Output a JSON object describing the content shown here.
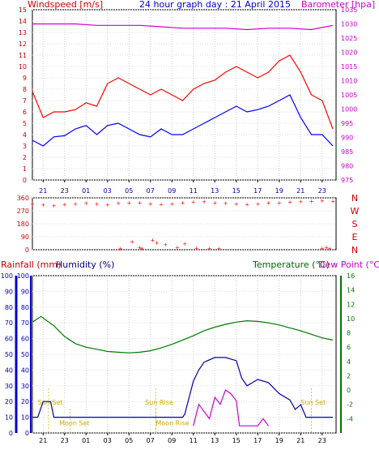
{
  "chart_data": [
    {
      "type": "line",
      "title": "24 hour graph day : 21 April 2015",
      "ylabel_left": "Windspeed [m/s]",
      "ylabel_right": "Barometer [hpa]",
      "x_ticks": [
        "21",
        "23",
        "01",
        "03",
        "05",
        "07",
        "09",
        "11",
        "13",
        "15",
        "17",
        "19",
        "21",
        "23"
      ],
      "y_left_ticks": [
        "0",
        "1",
        "2",
        "3",
        "4",
        "5",
        "6",
        "7",
        "8",
        "9",
        "10",
        "11",
        "12",
        "13",
        "14",
        "15"
      ],
      "y_right_ticks": [
        "975",
        "980",
        "985",
        "990",
        "995",
        "1000",
        "1005",
        "1010",
        "1015",
        "1020",
        "1025",
        "1030",
        "1035"
      ],
      "ylim_left": [
        0,
        15
      ],
      "ylim_right": [
        975,
        1035
      ],
      "grid": true,
      "series": [
        {
          "role": "gust",
          "color": "#ff0000",
          "x": [
            0,
            1,
            2,
            3,
            4,
            5,
            6,
            7,
            8,
            9,
            10,
            11,
            12,
            13,
            14,
            15,
            16,
            17,
            18,
            19,
            20,
            21,
            22,
            23,
            24,
            25,
            26,
            27,
            28
          ],
          "values": [
            7.8,
            5.5,
            6.0,
            6.0,
            6.2,
            6.8,
            6.5,
            8.5,
            9.0,
            8.5,
            8.0,
            7.5,
            8.0,
            7.5,
            7.0,
            8.0,
            8.5,
            8.8,
            9.5,
            10.0,
            9.5,
            9.0,
            9.5,
            10.5,
            11.0,
            9.5,
            7.5,
            7.0,
            4.5
          ]
        },
        {
          "role": "speed",
          "color": "#0000ff",
          "x": [
            0,
            1,
            2,
            3,
            4,
            5,
            6,
            7,
            8,
            9,
            10,
            11,
            12,
            13,
            14,
            15,
            16,
            17,
            18,
            19,
            20,
            21,
            22,
            23,
            24,
            25,
            26,
            27,
            28
          ],
          "values": [
            3.5,
            3.0,
            3.8,
            3.9,
            4.5,
            4.8,
            4.0,
            4.8,
            5.0,
            4.5,
            4.0,
            3.8,
            4.5,
            4.0,
            4.0,
            4.5,
            5.0,
            5.5,
            6.0,
            6.5,
            6.0,
            6.2,
            6.5,
            7.0,
            7.5,
            5.5,
            4.0,
            4.0,
            3.0
          ]
        },
        {
          "role": "barometer",
          "color": "#cc00cc",
          "axis": "right",
          "x": [
            0,
            2,
            4,
            6,
            8,
            10,
            12,
            14,
            16,
            18,
            20,
            22,
            24,
            26,
            28
          ],
          "values": [
            1030,
            1030,
            1030,
            1029.5,
            1029.5,
            1029.5,
            1029,
            1028.5,
            1028.5,
            1028.5,
            1028,
            1028.5,
            1028.5,
            1028,
            1029.5
          ]
        }
      ]
    },
    {
      "type": "scatter",
      "ylabel_right": [
        "N",
        "W",
        "S",
        "E",
        "N"
      ],
      "y_left_ticks": [
        "0",
        "90",
        "180",
        "270",
        "360"
      ],
      "ylim": [
        0,
        360
      ],
      "x_ticks": [
        "21",
        "23",
        "01",
        "03",
        "05",
        "07",
        "09",
        "11",
        "13",
        "15",
        "17",
        "19",
        "21",
        "23"
      ],
      "series": [
        {
          "role": "wind_direction",
          "color": "#ff0000",
          "x": [
            0,
            1,
            2,
            3,
            4,
            5,
            6,
            7,
            8,
            9,
            10,
            11,
            12,
            13,
            14,
            15,
            16,
            17,
            18,
            19,
            20,
            21,
            22,
            23,
            24,
            25,
            26,
            27,
            28
          ],
          "values": [
            320,
            315,
            310,
            318,
            322,
            325,
            320,
            315,
            325,
            330,
            328,
            320,
            318,
            322,
            330,
            335,
            338,
            330,
            325,
            320,
            318,
            322,
            328,
            330,
            335,
            338,
            340,
            342,
            340
          ]
        },
        {
          "role": "wind_direction_low",
          "color": "#ff0000",
          "x": [
            8.2,
            9.3,
            10.0,
            10.2,
            11.2,
            11.6,
            12.4,
            13.5,
            14.2,
            15.3,
            16.5,
            17.4,
            27.0,
            27.4,
            27.7
          ],
          "values": [
            10,
            60,
            20,
            10,
            70,
            50,
            40,
            20,
            45,
            15,
            10,
            10,
            15,
            20,
            10
          ]
        }
      ]
    },
    {
      "type": "line",
      "ylabel_left": "Rainfall (mm)",
      "ylabel_left2": "Humidity (%)",
      "ylabel_right": "Temperature (°C)",
      "ylabel_right2": "Dew Point (°C)",
      "x_ticks": [
        "21",
        "23",
        "01",
        "03",
        "05",
        "07",
        "09",
        "11",
        "13",
        "15",
        "17",
        "19",
        "21",
        "23"
      ],
      "y_left_ticks": [
        "0",
        "10",
        "20",
        "30",
        "40",
        "50",
        "60",
        "70",
        "80",
        "90",
        "100"
      ],
      "y_right_ticks": [
        "-4",
        "-2",
        "0",
        "2",
        "4",
        "6",
        "8",
        "10",
        "12",
        "14",
        "16"
      ],
      "ylim_left": [
        0,
        100
      ],
      "ylim_right": [
        -6,
        16
      ],
      "annotations": [
        {
          "text": "Sun Set",
          "x": 0.5,
          "y": 18
        },
        {
          "text": "Moon Set",
          "x": 2.5,
          "y": 5
        },
        {
          "text": "Sun Rise",
          "x": 10.5,
          "y": 18
        },
        {
          "text": "Moon Rise",
          "x": 11.5,
          "y": 5
        },
        {
          "text": "Sun Set",
          "x": 25.0,
          "y": 18
        }
      ],
      "series": [
        {
          "role": "temperature",
          "color": "#007700",
          "axis": "right",
          "x": [
            0,
            0.8,
            2,
            3,
            4,
            5,
            6,
            7,
            8,
            9,
            10,
            11,
            12,
            13,
            14,
            15,
            16,
            17,
            18,
            19,
            20,
            21,
            22,
            23,
            24,
            25,
            26,
            27,
            28
          ],
          "values": [
            9.5,
            10.3,
            9.0,
            7.5,
            6.5,
            6.0,
            5.7,
            5.4,
            5.3,
            5.2,
            5.3,
            5.5,
            5.9,
            6.4,
            7.0,
            7.6,
            8.3,
            8.8,
            9.2,
            9.5,
            9.7,
            9.6,
            9.4,
            9.1,
            8.7,
            8.3,
            7.8,
            7.3,
            7.0
          ]
        },
        {
          "role": "humidity",
          "color": "#0000aa",
          "axis": "left",
          "x": [
            0,
            0.5,
            1,
            1.7,
            2,
            14,
            14.2,
            15,
            15.5,
            16,
            17,
            18,
            19,
            19.5,
            20,
            21,
            22,
            23,
            24,
            24.5,
            25,
            25.5,
            26,
            28
          ],
          "values": [
            10,
            10,
            20,
            20,
            10,
            10,
            12,
            33,
            40,
            45,
            48,
            48,
            46,
            35,
            30,
            34,
            32,
            25,
            21,
            15,
            18,
            10,
            10,
            10
          ]
        },
        {
          "role": "dew_point",
          "color": "#cc00cc",
          "axis": "right",
          "x": [
            15,
            15.5,
            16,
            16.5,
            17,
            17.5,
            18,
            18.5,
            19,
            19.3,
            20,
            21,
            21.5,
            22
          ],
          "values": [
            -5,
            -2,
            -3,
            -4,
            -1,
            -2,
            0,
            -0.5,
            -1.5,
            -5,
            -5,
            -5,
            -4,
            -5
          ]
        }
      ]
    }
  ]
}
